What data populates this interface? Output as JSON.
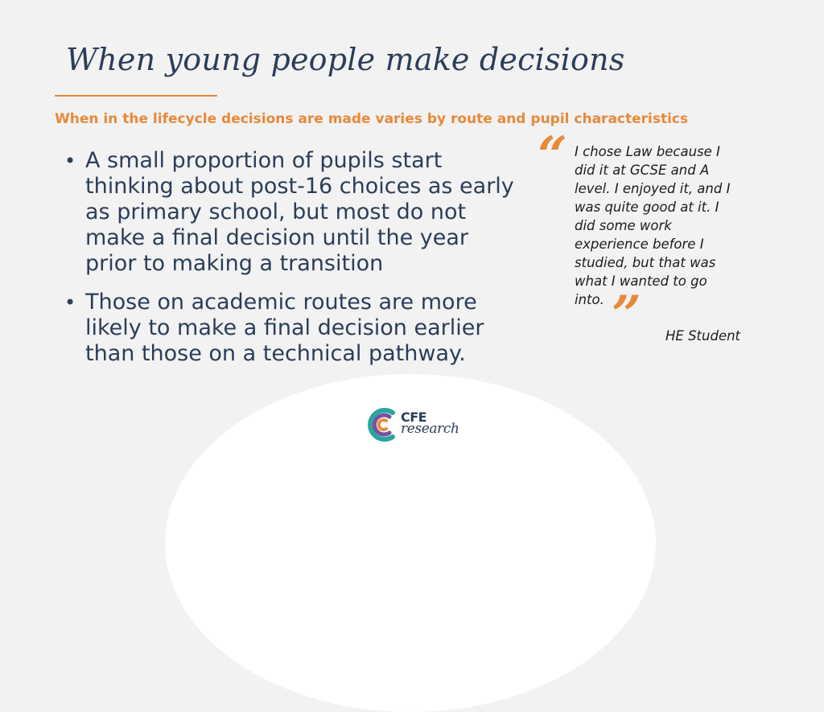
{
  "slide": {
    "title": "When young people make decisions",
    "subtitle": "When in the lifecycle decisions are made varies by route and pupil characteristics",
    "bullet_symbol": "•",
    "bullets": [
      "A small proportion of pupils start thinking about post-16 choices as early as primary school, but most do not make a final decision until the year prior to making a transition",
      "Those on academic routes are more likely to make a final decision earlier than those on a technical pathway."
    ],
    "quote": {
      "open_mark": "“",
      "text": "I chose Law because I did it at GCSE and A level. I enjoyed it, and I was quite good at it. I did some work experience before I studied, but that was what I wanted to go into.",
      "close_mark": "”",
      "attribution": "HE Student"
    }
  },
  "logo": {
    "line1": "CFE",
    "line2": "research",
    "ring_colors": [
      "#2aa5a0",
      "#7b4fa0",
      "#e8893a"
    ]
  },
  "colors": {
    "accent": "#e8893a",
    "heading": "#2b3d58",
    "background": "#f2f2f2"
  }
}
